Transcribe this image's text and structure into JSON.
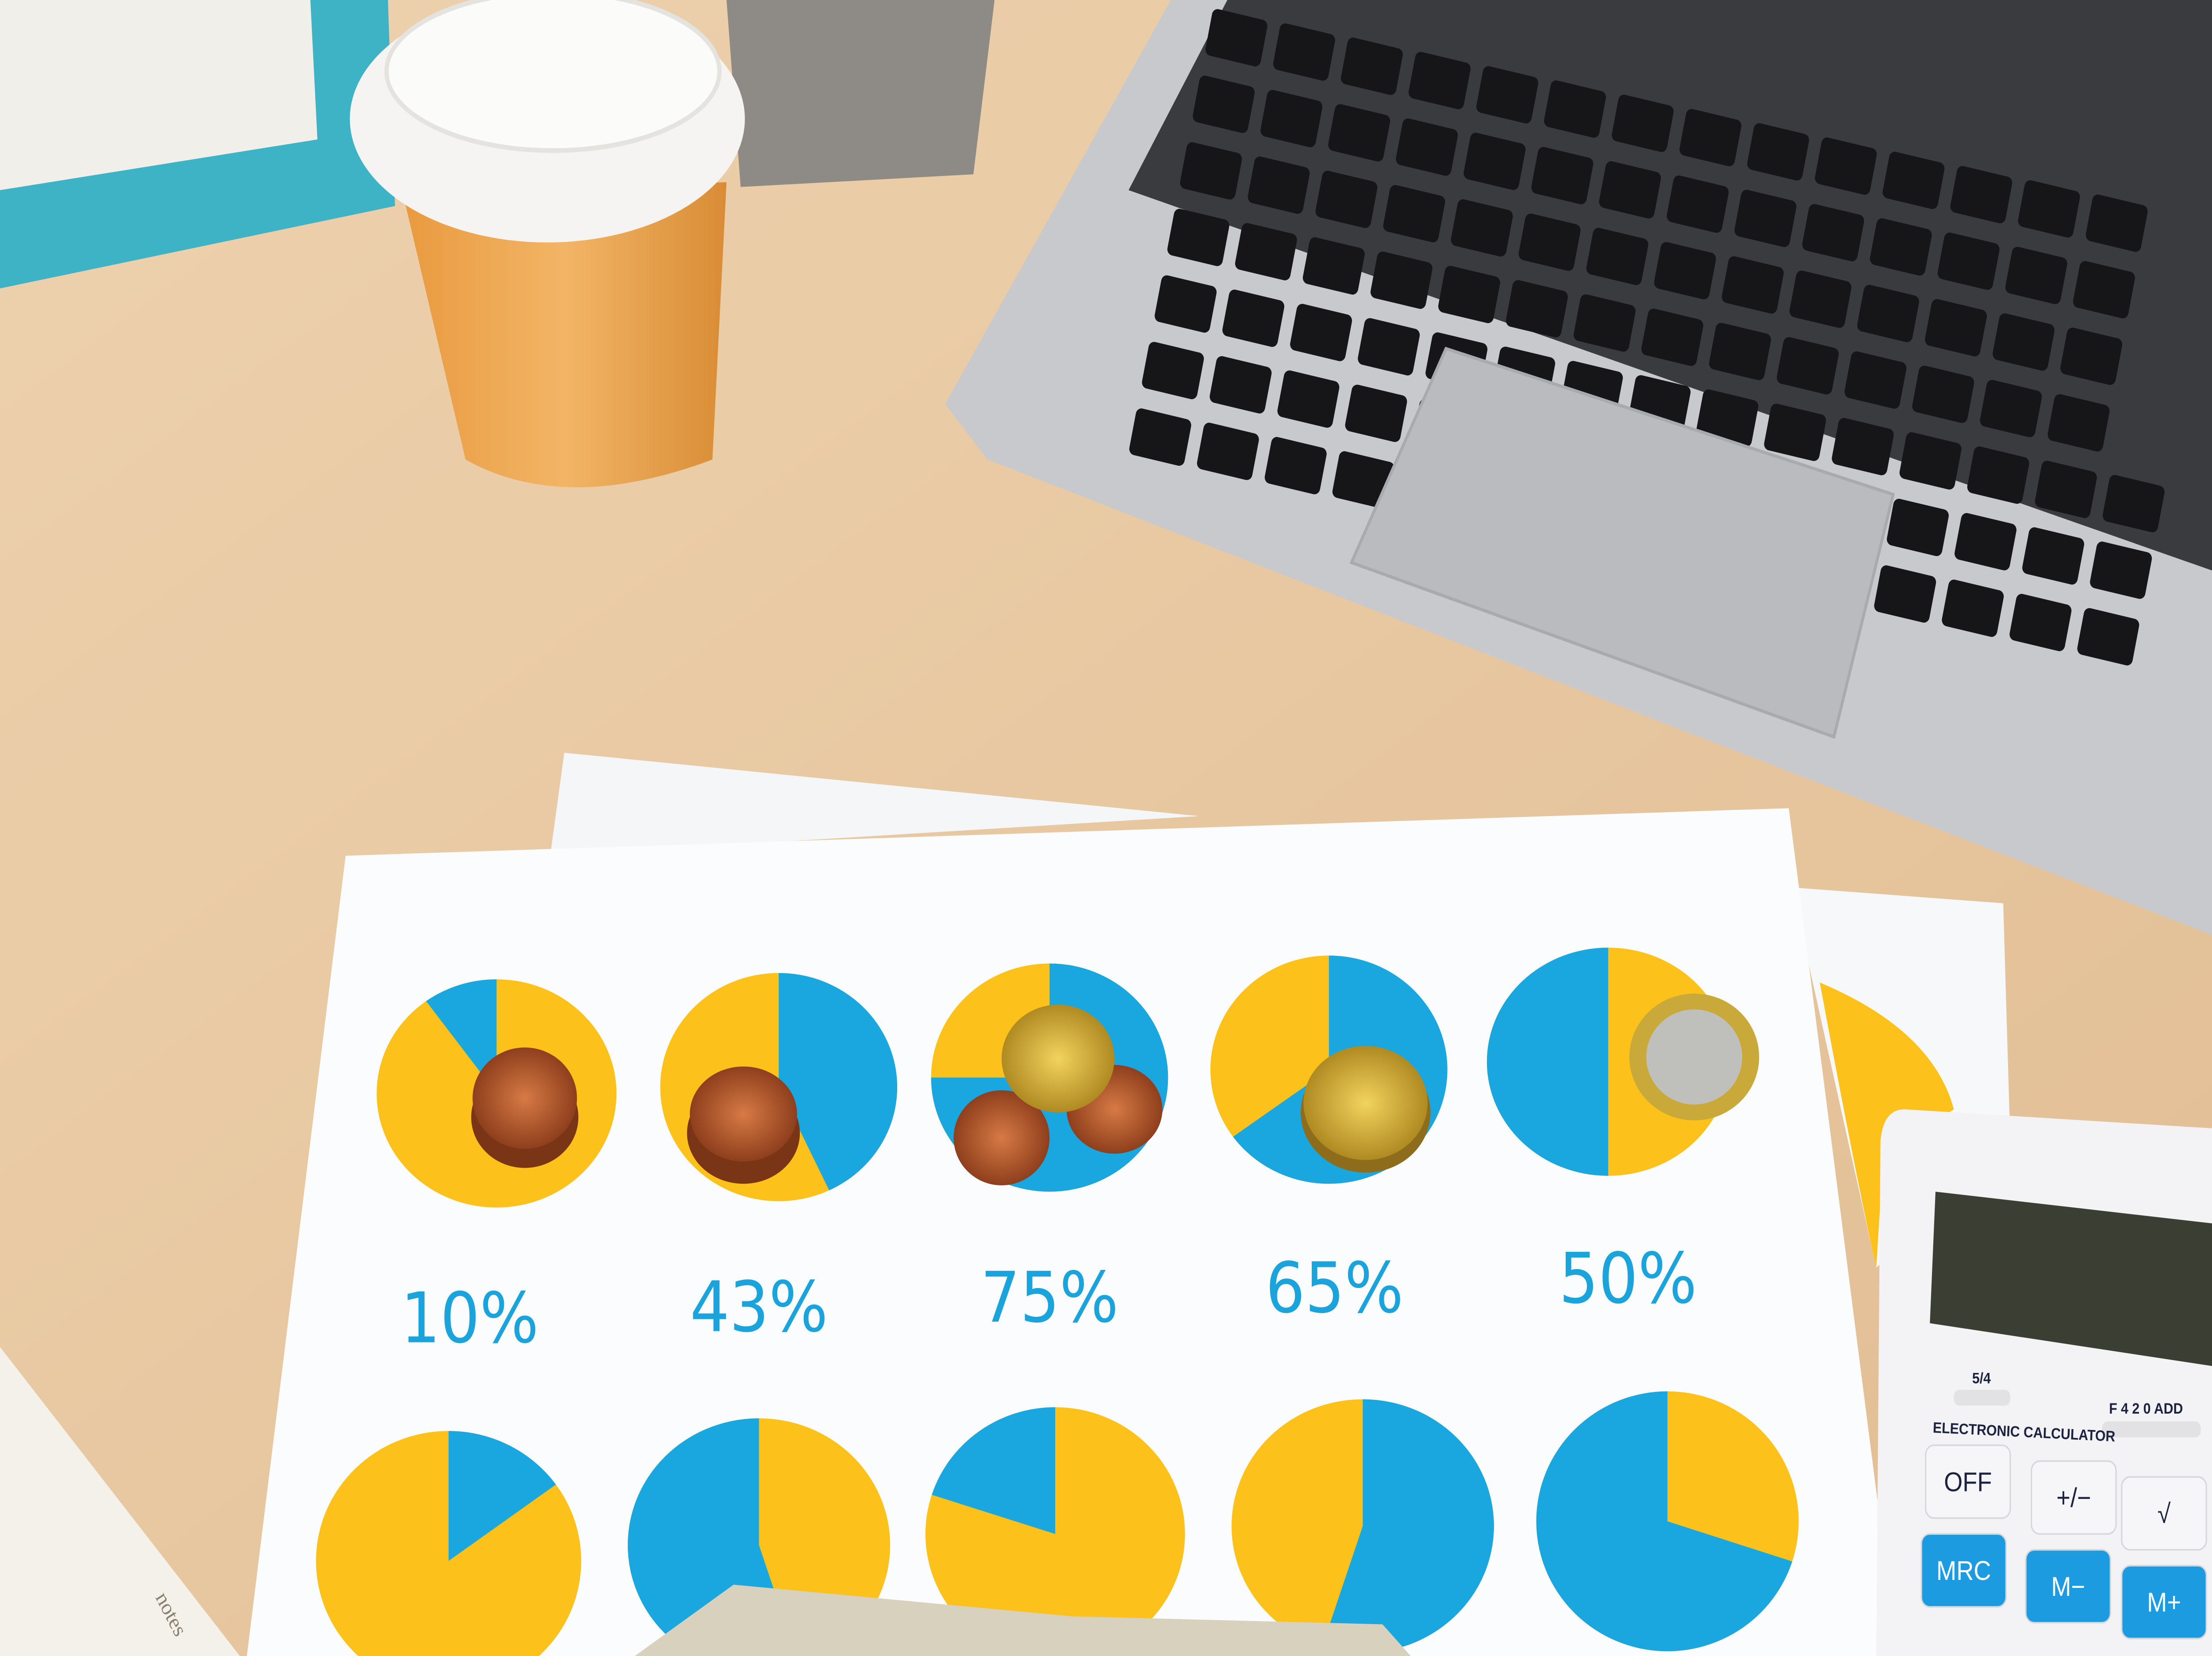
{
  "colors": {
    "pie_blue": "#1aa7e0",
    "pie_yellow": "#fcc21b",
    "desk": "#e9c9a2",
    "laptop": "#c4c6c9",
    "cup": "#e9a24d"
  },
  "charts": {
    "top_row": [
      {
        "label": "10%",
        "blue_share": 10
      },
      {
        "label": "43%",
        "blue_share": 43
      },
      {
        "label": "75%",
        "blue_share": 75
      },
      {
        "label": "65%",
        "blue_share": 65
      },
      {
        "label": "50%",
        "blue_share": 50
      }
    ],
    "bottom_row": [
      {
        "blue_share": 15
      },
      {
        "blue_share": 55
      },
      {
        "blue_share": 20
      },
      {
        "blue_share": 55
      },
      {
        "blue_share": 70
      }
    ]
  },
  "calculator": {
    "brand_text": "ELECTRONIC CALCULATOR",
    "rounding_switch": "5/4",
    "decimal_switch": "F 4 2 0 ADD",
    "keys": [
      "OFF",
      "+/−",
      "√",
      "MRC",
      "M−",
      "M+"
    ]
  },
  "notebook": {
    "label": "notes"
  },
  "icons": {
    "coin": "coin-stack",
    "cup": "coffee-cup",
    "laptop": "laptop"
  }
}
